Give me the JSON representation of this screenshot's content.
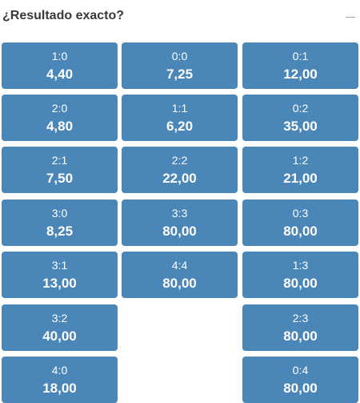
{
  "market": {
    "title": "¿Resultado exacto?"
  },
  "columns": [
    [
      {
        "score": "1:0",
        "odd": "4,40"
      },
      {
        "score": "2:0",
        "odd": "4,80"
      },
      {
        "score": "2:1",
        "odd": "7,50"
      },
      {
        "score": "3:0",
        "odd": "8,25"
      },
      {
        "score": "3:1",
        "odd": "13,00"
      },
      {
        "score": "3:2",
        "odd": "40,00"
      },
      {
        "score": "4:0",
        "odd": "18,00"
      }
    ],
    [
      {
        "score": "0:0",
        "odd": "7,25"
      },
      {
        "score": "1:1",
        "odd": "6,20"
      },
      {
        "score": "2:2",
        "odd": "22,00"
      },
      {
        "score": "3:3",
        "odd": "80,00"
      },
      {
        "score": "4:4",
        "odd": "80,00"
      }
    ],
    [
      {
        "score": "0:1",
        "odd": "12,00"
      },
      {
        "score": "0:2",
        "odd": "35,00"
      },
      {
        "score": "1:2",
        "odd": "21,00"
      },
      {
        "score": "0:3",
        "odd": "80,00"
      },
      {
        "score": "1:3",
        "odd": "80,00"
      },
      {
        "score": "2:3",
        "odd": "80,00"
      },
      {
        "score": "0:4",
        "odd": "80,00"
      }
    ]
  ],
  "colors": {
    "button_bg": "#4b86b8",
    "button_text": "#ffffff",
    "title_text": "#3a3a3a",
    "icon": "#9aa5b1"
  },
  "icons": {
    "collapse": "minus-icon"
  }
}
